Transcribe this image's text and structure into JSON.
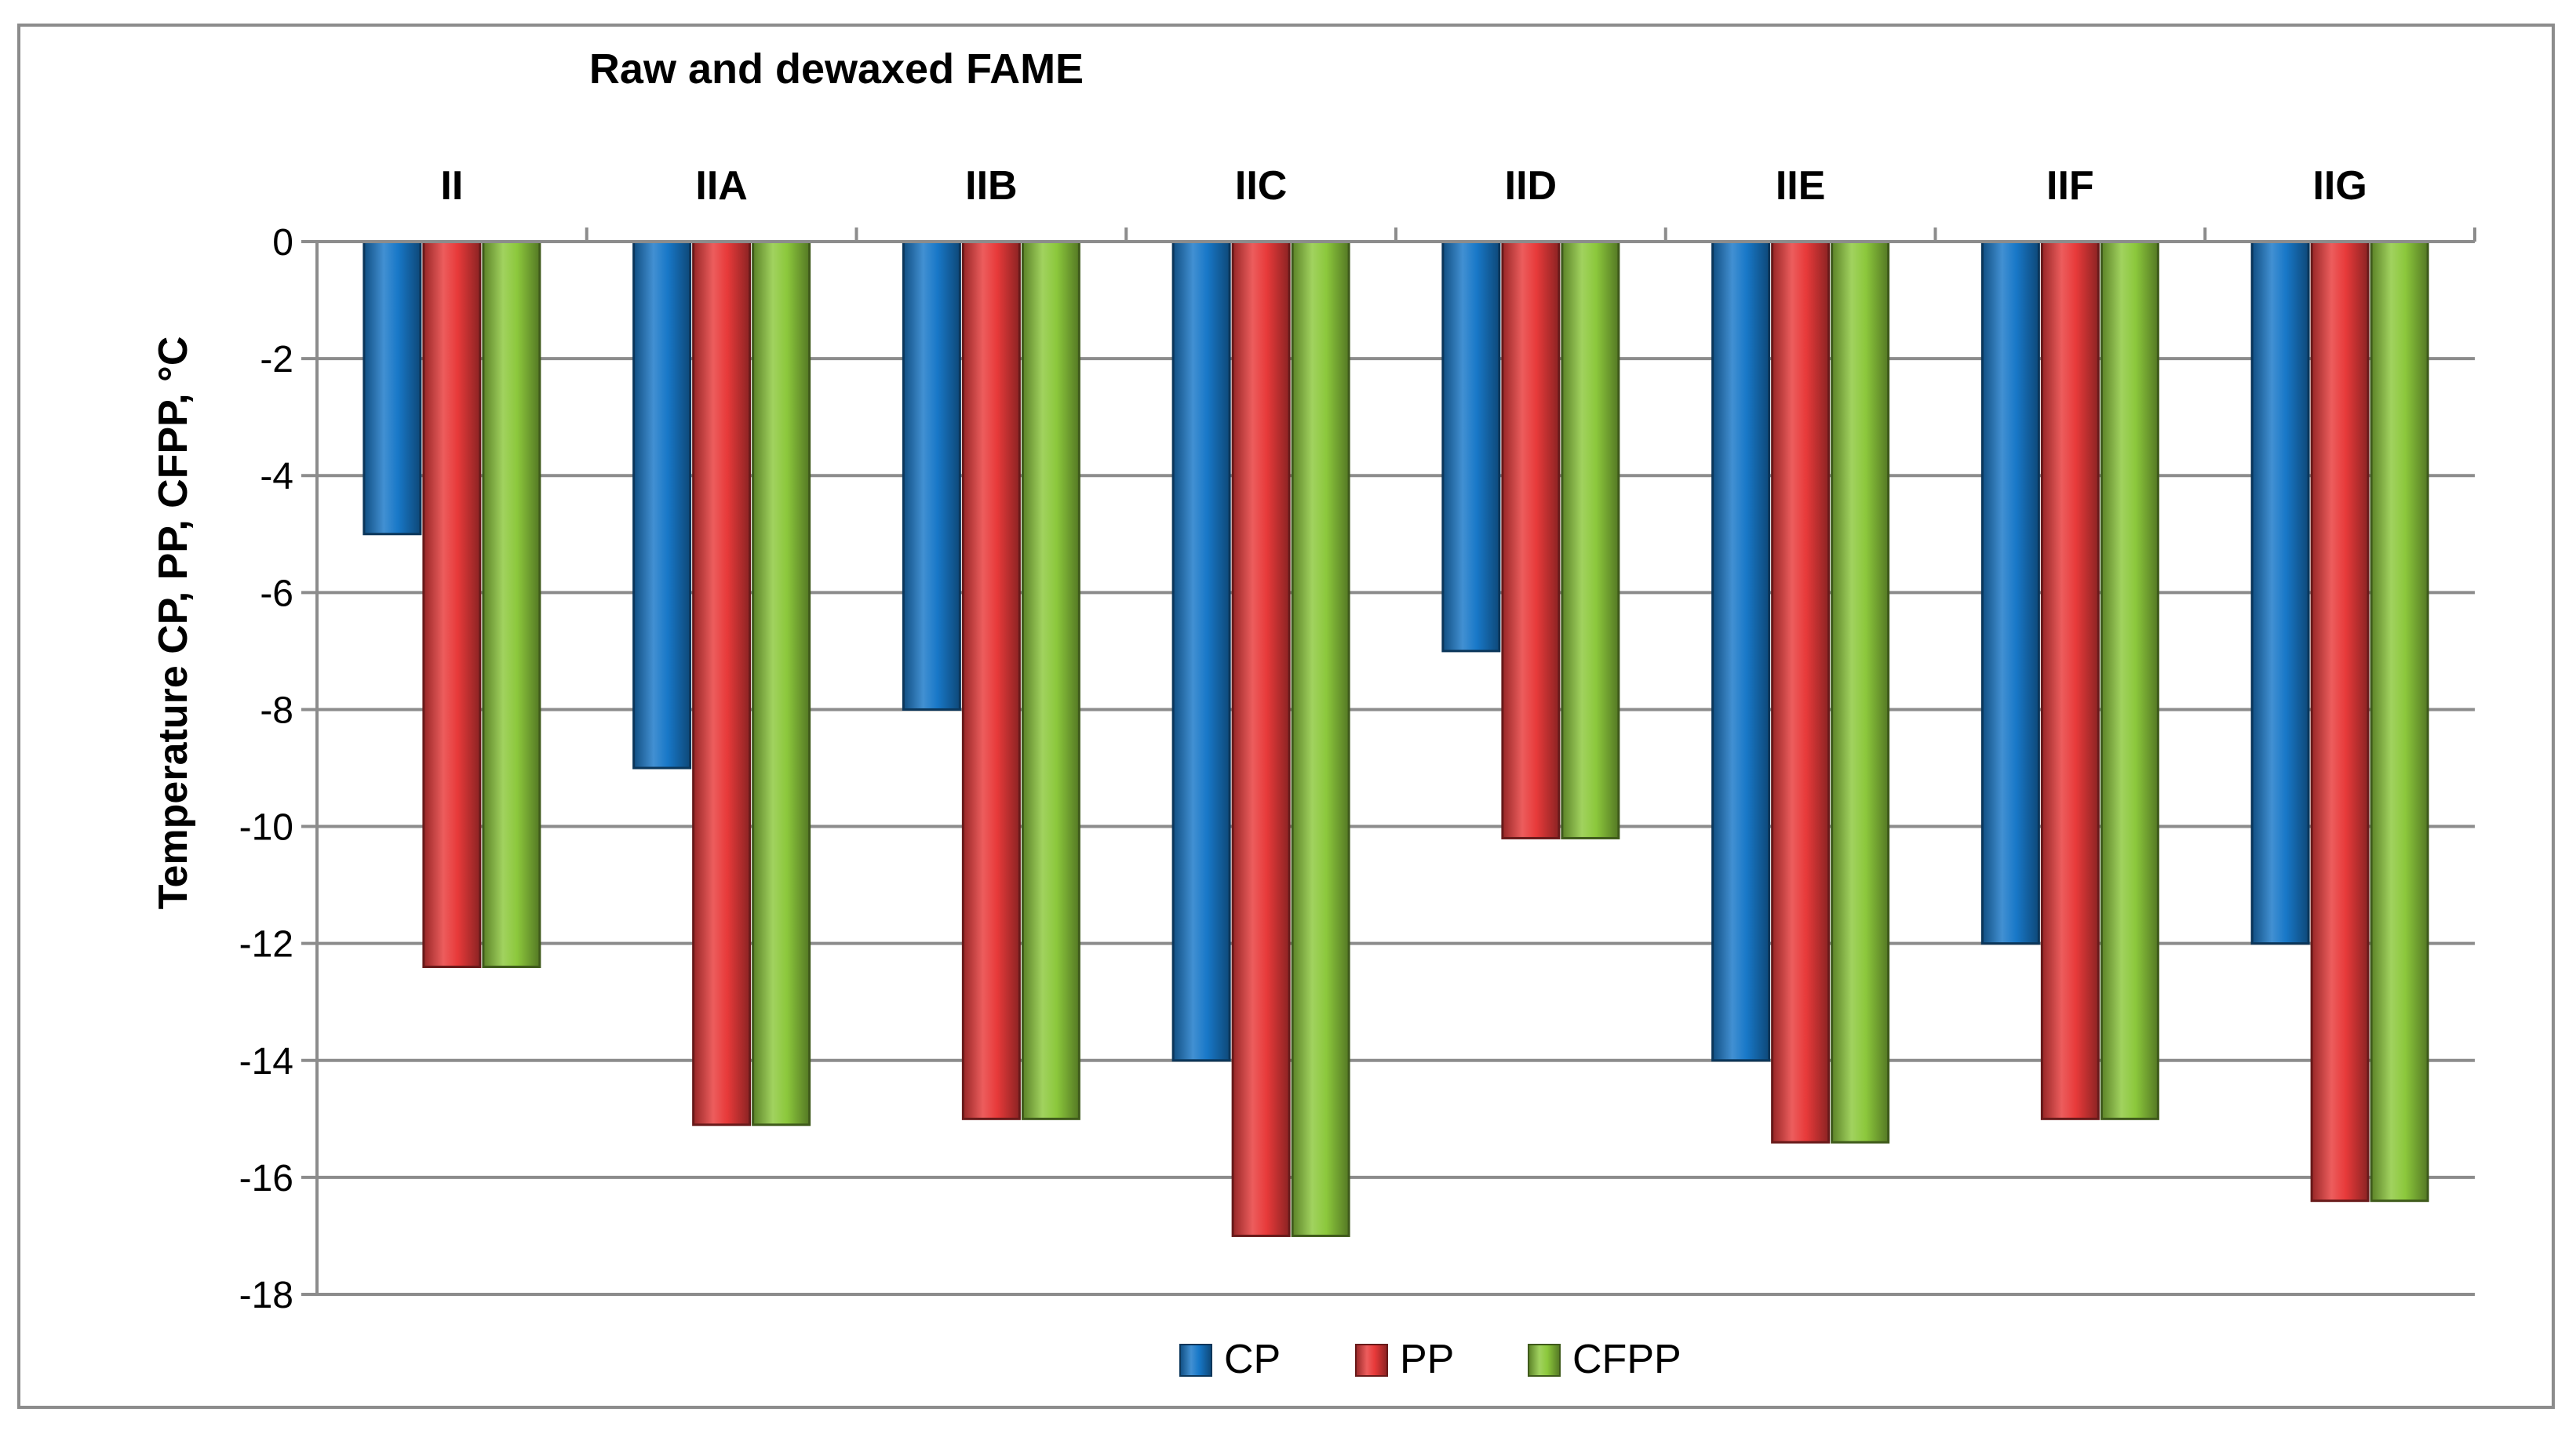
{
  "chart_data": {
    "type": "bar",
    "title": "Raw and dewaxed FAME",
    "xlabel": "",
    "ylabel": "Temperature CP, PP, CFPP, °C",
    "categories": [
      "II",
      "IIA",
      "IIB",
      "IIC",
      "IID",
      "IIE",
      "IIF",
      "IIG"
    ],
    "category_axis_position": "top",
    "series": [
      {
        "name": "CP",
        "color": "#1878c8",
        "values": [
          -5,
          -9,
          -8,
          -14,
          -7,
          -14,
          -12,
          -12
        ]
      },
      {
        "name": "PP",
        "color": "#e83a3a",
        "values": [
          -12.4,
          -15.1,
          -15,
          -17,
          -10.2,
          -15.4,
          -15,
          -16.4
        ]
      },
      {
        "name": "CFPP",
        "color": "#8cc83c",
        "values": [
          -12.4,
          -15.1,
          -15,
          -17,
          -10.2,
          -15.4,
          -15,
          -16.4
        ]
      }
    ],
    "ylim": [
      -18,
      0
    ],
    "yticks": [
      0,
      -2,
      -4,
      -6,
      -8,
      -10,
      -12,
      -14,
      -16,
      -18
    ],
    "grid": true,
    "legend_position": "bottom-center"
  }
}
